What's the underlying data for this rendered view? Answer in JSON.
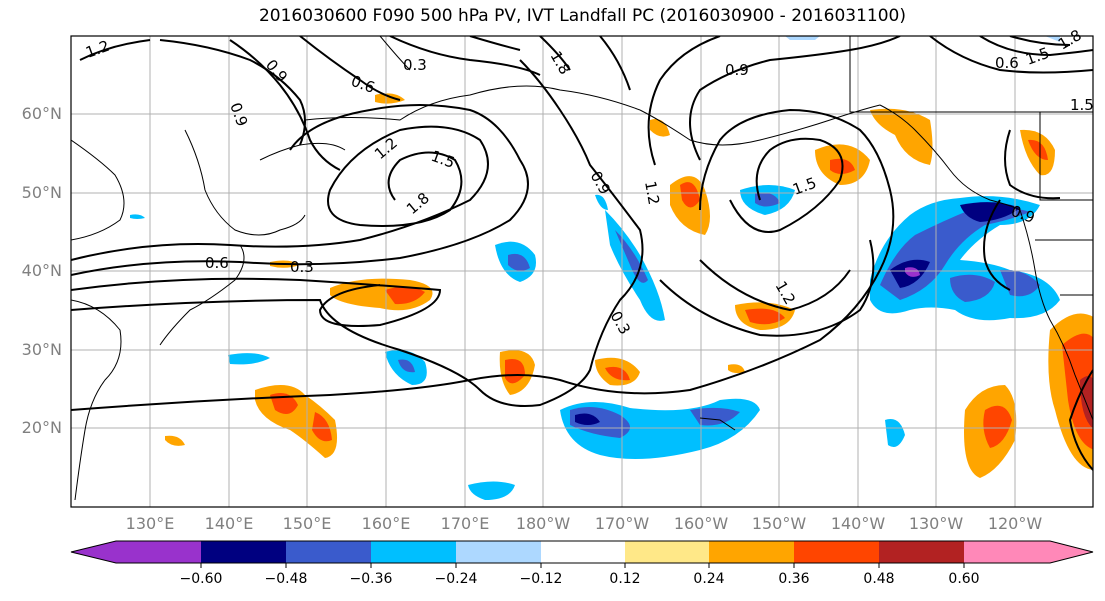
{
  "title": "2016030600 F090 500 hPa PV, IVT Landfall PC (2016030900 - 2016031100)",
  "lat_labels": [
    "60°N",
    "50°N",
    "40°N",
    "30°N",
    "20°N"
  ],
  "lon_labels": [
    "130°E",
    "140°E",
    "150°E",
    "160°E",
    "170°E",
    "180°W",
    "170°W",
    "160°W",
    "150°W",
    "140°W",
    "130°W",
    "120°W"
  ],
  "colorbar": {
    "colors": [
      "#9932cc",
      "#000080",
      "#3a5bcc",
      "#00bfff",
      "#add8ff",
      "#ffffff",
      "#ffe888",
      "#ffa500",
      "#ff4500",
      "#b22222",
      "#ff88b8"
    ],
    "ticks": [
      "−0.60",
      "−0.48",
      "−0.36",
      "−0.24",
      "−0.12",
      "0.12",
      "0.24",
      "0.36",
      "0.48",
      "0.60"
    ]
  },
  "contour_labels": [
    "1.2",
    "0.9",
    "0.6",
    "0.3",
    "0.9",
    "1.5",
    "1.8",
    "0.9",
    "0.9",
    "1.2",
    "1.5",
    "1.8",
    "0.6",
    "0.3",
    "0.9",
    "1.2",
    "0.3",
    "1.5",
    "0.6",
    "1.2",
    "1.5",
    "1.8"
  ]
}
